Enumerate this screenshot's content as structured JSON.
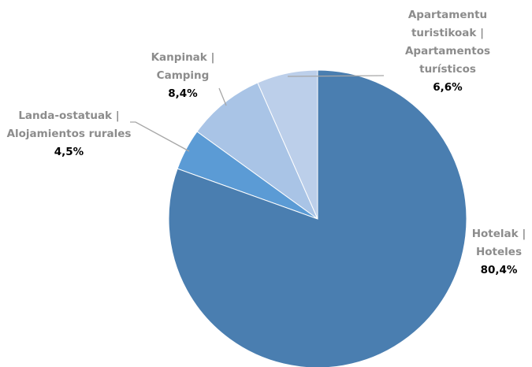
{
  "chart_data": {
    "type": "pie",
    "categories": [
      "Hotelak | Hoteles",
      "Landa-ostatuak | Alojamientos rurales",
      "Kanpinak | Camping",
      "Apartamentu turistikoak | Apartamentos turísticos"
    ],
    "values": [
      80.4,
      4.5,
      8.4,
      6.6
    ],
    "value_labels": [
      "80,4%",
      "4,5%",
      "8,4%",
      "6,6%"
    ],
    "colors": [
      "#4a7eb0",
      "#5b9bd5",
      "#a9c4e6",
      "#bccfea"
    ]
  }
}
